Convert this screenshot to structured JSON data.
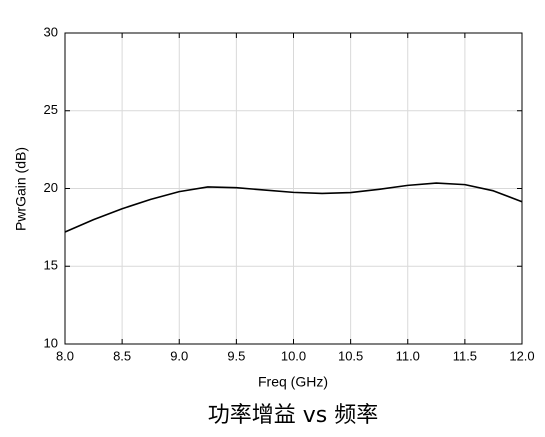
{
  "chart_data": {
    "type": "line",
    "title": "功率增益 vs 频率",
    "x_label": "Freq (GHz)",
    "y_label": "PwrGain (dB)",
    "x": [
      8.0,
      8.25,
      8.5,
      8.75,
      9.0,
      9.25,
      9.5,
      9.75,
      10.0,
      10.25,
      10.5,
      10.75,
      11.0,
      11.25,
      11.5,
      11.75,
      12.0
    ],
    "values": [
      17.2,
      18.0,
      18.7,
      19.3,
      19.8,
      20.1,
      20.05,
      19.9,
      19.75,
      19.68,
      19.74,
      19.95,
      20.2,
      20.35,
      20.25,
      19.85,
      19.15
    ],
    "color": "#000000",
    "xlim": [
      8.0,
      12.0
    ],
    "xticks": [
      {
        "value": 8.0,
        "label": "8.0"
      },
      8.5,
      {
        "value": 9.0,
        "label": "9.0"
      },
      9.5,
      {
        "value": 10.0,
        "label": "10.0"
      },
      10.5,
      {
        "value": 11.0,
        "label": "11.0"
      },
      11.5,
      {
        "value": 12.0,
        "label": "12.0"
      }
    ],
    "ylim": [
      10,
      30
    ],
    "yticks": [
      10,
      15,
      20,
      25,
      30
    ],
    "grid": true
  }
}
